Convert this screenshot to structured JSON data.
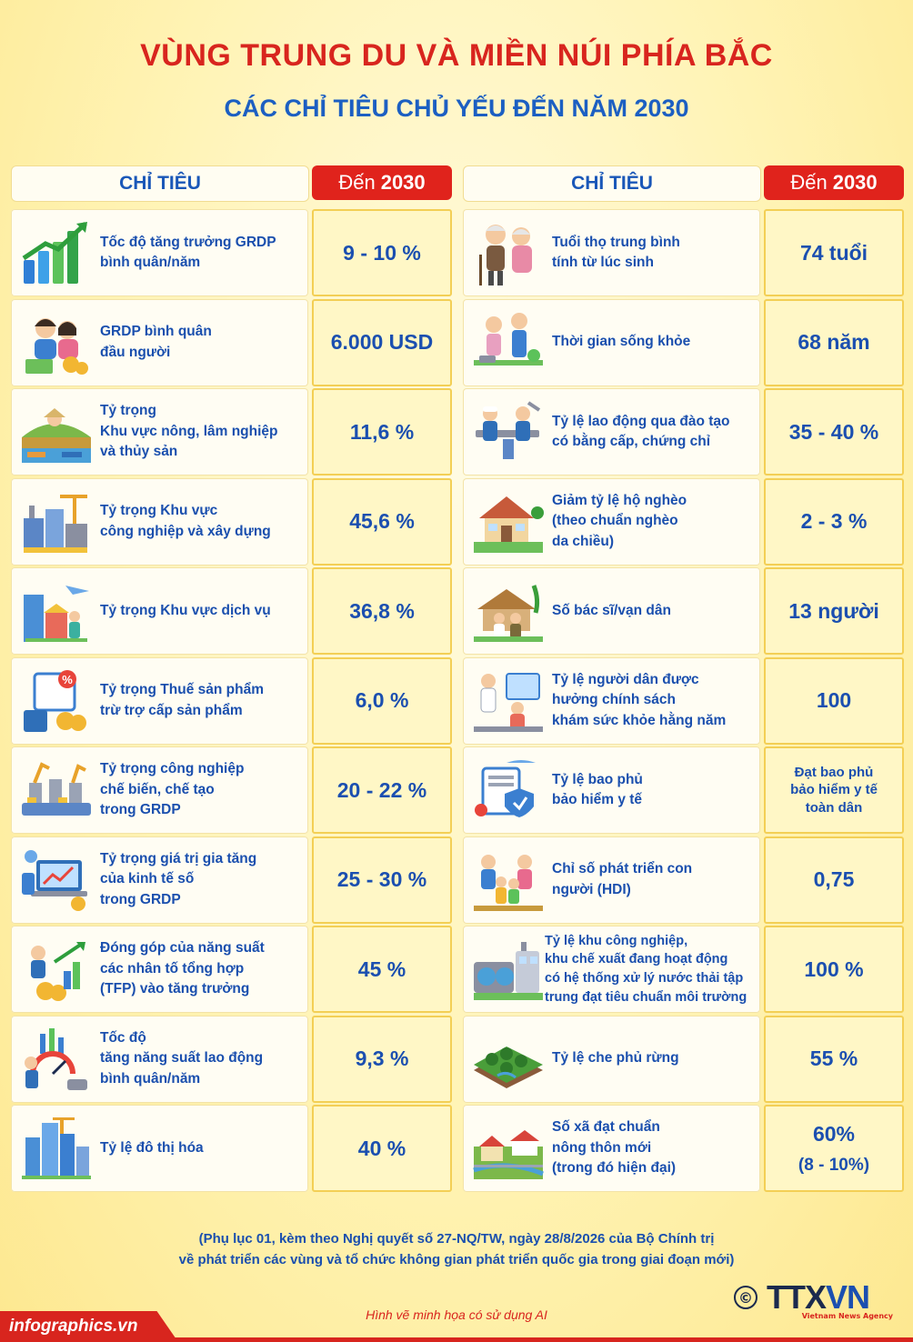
{
  "header": {
    "title": "VÙNG TRUNG DU VÀ MIỀN NÚI PHÍA BẮC",
    "subtitle": "CÁC CHỈ TIÊU CHỦ YẾU ĐẾN NĂM 2030"
  },
  "columns": {
    "indicator_label": "CHỈ TIÊU",
    "target_prefix": "Đến",
    "target_year": "2030"
  },
  "left_rows": [
    {
      "label": "Tốc độ tăng trưởng GRDP\nbình quân/năm",
      "value": "9 - 10 %",
      "icon": "growth-chart-icon"
    },
    {
      "label": "GRDP bình quân\nđầu người",
      "value": "6.000 USD",
      "icon": "income-couple-icon"
    },
    {
      "label": "Tỷ trọng\nKhu vực nông, lâm nghiệp\nvà thủy sản",
      "value": "11,6 %",
      "icon": "agriculture-icon"
    },
    {
      "label": "Tỷ trọng Khu vực\ncông nghiệp và xây dựng",
      "value": "45,6 %",
      "icon": "industry-icon"
    },
    {
      "label": "Tỷ trọng Khu vực dịch vụ",
      "value": "36,8 %",
      "icon": "services-icon"
    },
    {
      "label": "Tỷ trọng Thuế sản phẩm\ntrừ trợ cấp sản phẩm",
      "value": "6,0 %",
      "icon": "tax-icon"
    },
    {
      "label": "Tỷ trọng công nghiệp\nchế biến, chế tạo\ntrong GRDP",
      "value": "20 - 22 %",
      "icon": "manufacturing-icon"
    },
    {
      "label": "Tỷ trọng giá trị gia tăng\ncủa kinh tế số\ntrong GRDP",
      "value": "25 - 30 %",
      "icon": "digital-economy-icon"
    },
    {
      "label": "Đóng góp của năng suất\ncác nhân tố tổng hợp\n(TFP) vào tăng trưởng",
      "value": "45 %",
      "icon": "tfp-icon"
    },
    {
      "label": "Tốc độ\ntăng năng suất lao động\nbình quân/năm",
      "value": "9,3 %",
      "icon": "productivity-icon"
    },
    {
      "label": "Tỷ lệ đô thị hóa",
      "value": "40 %",
      "icon": "urban-icon"
    }
  ],
  "right_rows": [
    {
      "label": "Tuổi thọ trung bình\ntính từ lúc sinh",
      "value": "74 tuổi",
      "icon": "elderly-couple-icon"
    },
    {
      "label": "Thời gian sống khỏe",
      "value": "68 năm",
      "icon": "healthy-life-icon"
    },
    {
      "label": "Tỷ lệ lao động qua đào tạo\ncó bằng cấp, chứng chỉ",
      "value": "35 - 40 %",
      "icon": "trained-workers-icon"
    },
    {
      "label": "Giảm tỷ lệ hộ nghèo\n(theo chuẩn nghèo\nda chiều)",
      "value": "2 - 3 %",
      "icon": "poor-household-icon"
    },
    {
      "label": "Số bác sĩ/vạn dân",
      "value": "13 người",
      "icon": "doctor-village-icon"
    },
    {
      "label": "Tỷ lệ người dân được\nhưởng chính sách\nkhám sức khỏe hằng năm",
      "value": "100",
      "icon": "health-check-icon"
    },
    {
      "label": "Tỷ lệ bao phủ\nbảo hiểm y tế",
      "value": "Đạt bao phủ\nbảo hiểm y tế\ntoàn dân",
      "icon": "insurance-icon",
      "small": true
    },
    {
      "label": "Chỉ số phát triển con\nngười (HDI)",
      "value": "0,75",
      "icon": "family-icon"
    },
    {
      "label": "Tỷ lệ khu công nghiệp,\nkhu chế xuất đang hoạt động\ncó hệ thống xử lý nước thải tập\ntrung đạt tiêu chuẩn môi trường",
      "value": "100 %",
      "icon": "water-treatment-icon",
      "tight": true
    },
    {
      "label": "Tỷ lệ che phủ rừng",
      "value": "55 %",
      "icon": "forest-icon"
    },
    {
      "label": "Số xã đạt chuẩn\nnông thôn mới\n(trong đó hiện đại)",
      "value": "60%",
      "value2": "(8 - 10%)",
      "icon": "new-rural-icon"
    }
  ],
  "footnote": "(Phụ lục 01, kèm theo Nghị quyết số 27-NQ/TW, ngày 28/8/2026 của Bộ Chính trị\nvề phát triển các vùng và tổ chức không gian phát triển quốc gia trong giai đoạn mới)",
  "ai_note": "Hình vẽ minh họa có sử dụng AI",
  "brand": "infographics.vn",
  "logo": {
    "copyright": "©",
    "name_a": "TTX",
    "name_b": "VN",
    "agency": "Vietnam News Agency"
  }
}
